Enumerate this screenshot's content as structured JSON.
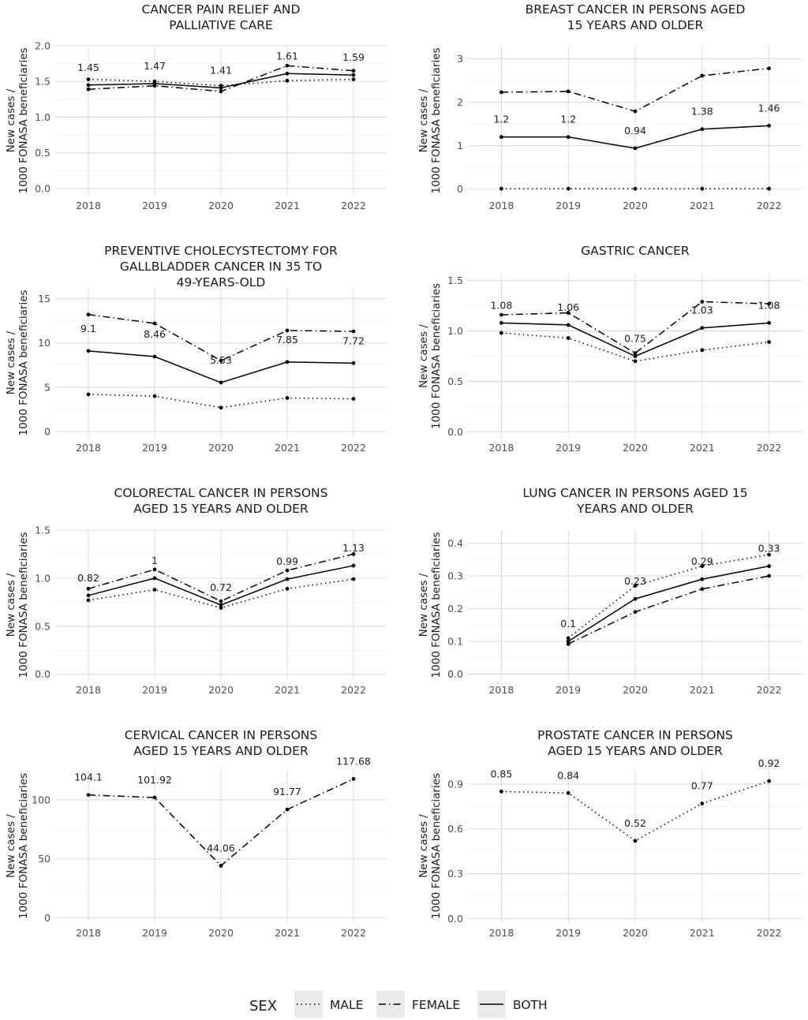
{
  "chart_data": [
    {
      "type": "line",
      "title": [
        "CANCER PAIN RELIEF AND",
        "PALLIATIVE CARE"
      ],
      "ylabel": [
        "New cases /",
        "1000 FONASA beneficiaries"
      ],
      "x": [
        2018,
        2019,
        2020,
        2021,
        2022
      ],
      "ylim": [
        -0.1,
        2.0
      ],
      "yticks": [
        "0.0",
        "0.5",
        "1.0",
        "1.5",
        "2.0"
      ],
      "ytick_values": [
        0,
        0.5,
        1.0,
        1.5,
        2.0
      ],
      "series": [
        {
          "name": "MALE",
          "values": [
            1.53,
            1.5,
            1.44,
            1.51,
            1.53
          ]
        },
        {
          "name": "FEMALE",
          "values": [
            1.39,
            1.44,
            1.36,
            1.72,
            1.65
          ]
        },
        {
          "name": "BOTH",
          "values": [
            1.45,
            1.47,
            1.41,
            1.61,
            1.59
          ]
        }
      ],
      "data_labels": [
        "1.45",
        "1.47",
        "1.41",
        "1.61",
        "1.59"
      ]
    },
    {
      "type": "line",
      "title": [
        "BREAST CANCER IN PERSONS AGED",
        "15 YEARS AND OLDER"
      ],
      "ylabel": [
        "New cases /",
        "1000 FONASA beneficiaries"
      ],
      "x": [
        2018,
        2019,
        2020,
        2021,
        2022
      ],
      "ylim": [
        -0.15,
        3.3
      ],
      "yticks": [
        "0",
        "1",
        "2",
        "3"
      ],
      "ytick_values": [
        0,
        1,
        2,
        3
      ],
      "series": [
        {
          "name": "MALE",
          "values": [
            0.01,
            0.01,
            0.01,
            0.01,
            0.01
          ]
        },
        {
          "name": "FEMALE",
          "values": [
            2.23,
            2.25,
            1.79,
            2.61,
            2.78
          ]
        },
        {
          "name": "BOTH",
          "values": [
            1.2,
            1.2,
            0.94,
            1.38,
            1.46
          ]
        }
      ],
      "data_labels": [
        "1.2",
        "1.2",
        "0.94",
        "1.38",
        "1.46"
      ]
    },
    {
      "type": "line",
      "title": [
        "PREVENTIVE CHOLECYSTECTOMY FOR",
        "GALLBLADDER CANCER IN 35 TO",
        "49-YEARS-OLD"
      ],
      "ylabel": [
        "New cases /",
        "1000 FONASA beneficiaries"
      ],
      "x": [
        2018,
        2019,
        2020,
        2021,
        2022
      ],
      "ylim": [
        -0.7,
        16.2
      ],
      "yticks": [
        "0",
        "5",
        "10",
        "15"
      ],
      "ytick_values": [
        0,
        5,
        10,
        15
      ],
      "series": [
        {
          "name": "MALE",
          "values": [
            4.2,
            4.0,
            2.7,
            3.8,
            3.7
          ]
        },
        {
          "name": "FEMALE",
          "values": [
            13.2,
            12.2,
            8.0,
            11.4,
            11.3
          ]
        },
        {
          "name": "BOTH",
          "values": [
            9.1,
            8.46,
            5.53,
            7.85,
            7.72
          ]
        }
      ],
      "data_labels": [
        "9.1",
        "8.46",
        "5.53",
        "7.85",
        "7.72"
      ]
    },
    {
      "type": "line",
      "title": [
        "GASTRIC CANCER"
      ],
      "ylabel": [
        "New cases /",
        "1000 FONASA beneficiaries"
      ],
      "x": [
        2018,
        2019,
        2020,
        2021,
        2022
      ],
      "ylim": [
        -0.06,
        1.56
      ],
      "yticks": [
        "0.0",
        "0.5",
        "1.0",
        "1.5"
      ],
      "ytick_values": [
        0,
        0.5,
        1.0,
        1.5
      ],
      "series": [
        {
          "name": "MALE",
          "values": [
            0.98,
            0.93,
            0.7,
            0.81,
            0.89
          ]
        },
        {
          "name": "FEMALE",
          "values": [
            1.16,
            1.18,
            0.78,
            1.29,
            1.27
          ]
        },
        {
          "name": "BOTH",
          "values": [
            1.08,
            1.06,
            0.75,
            1.03,
            1.08
          ]
        }
      ],
      "data_labels": [
        "1.08",
        "1.06",
        "0.75",
        "1.03",
        "1.08"
      ]
    },
    {
      "type": "line",
      "title": [
        "COLORECTAL CANCER IN PERSONS",
        "AGED 15 YEARS AND OLDER"
      ],
      "ylabel": [
        "New cases /",
        "1000 FONASA beneficiaries"
      ],
      "x": [
        2018,
        2019,
        2020,
        2021,
        2022
      ],
      "ylim": [
        -0.06,
        1.5
      ],
      "yticks": [
        "0.0",
        "0.5",
        "1.0",
        "1.5"
      ],
      "ytick_values": [
        0,
        0.5,
        1.0,
        1.5
      ],
      "series": [
        {
          "name": "MALE",
          "values": [
            0.77,
            0.88,
            0.69,
            0.89,
            0.99
          ]
        },
        {
          "name": "FEMALE",
          "values": [
            0.89,
            1.09,
            0.76,
            1.08,
            1.25
          ]
        },
        {
          "name": "BOTH",
          "values": [
            0.82,
            1.0,
            0.72,
            0.99,
            1.13
          ]
        }
      ],
      "data_labels": [
        "0.82",
        "1",
        "0.72",
        "0.99",
        "1.13"
      ]
    },
    {
      "type": "line",
      "title": [
        "LUNG CANCER IN PERSONS AGED 15",
        "YEARS AND OLDER"
      ],
      "ylabel": [
        "New cases /",
        "1000 FONASA beneficiaries"
      ],
      "x": [
        2018,
        2019,
        2020,
        2021,
        2022
      ],
      "ylim": [
        -0.018,
        0.44
      ],
      "yticks": [
        "0.0",
        "0.1",
        "0.2",
        "0.3",
        "0.4"
      ],
      "ytick_values": [
        0,
        0.1,
        0.2,
        0.3,
        0.4
      ],
      "series": [
        {
          "name": "MALE",
          "values": [
            null,
            0.11,
            0.27,
            0.33,
            0.365
          ]
        },
        {
          "name": "FEMALE",
          "values": [
            null,
            0.092,
            0.19,
            0.26,
            0.3
          ]
        },
        {
          "name": "BOTH",
          "values": [
            null,
            0.1,
            0.23,
            0.29,
            0.33
          ]
        }
      ],
      "data_labels": [
        null,
        "0.1",
        "0.23",
        "0.29",
        "0.33"
      ]
    },
    {
      "type": "line",
      "title": [
        "CERVICAL CANCER IN PERSONS",
        "AGED 15 YEARS AND OLDER"
      ],
      "ylabel": [
        "New cases /",
        "1000 FONASA beneficiaries"
      ],
      "x": [
        2018,
        2019,
        2020,
        2021,
        2022
      ],
      "ylim": [
        -4.5,
        126
      ],
      "yticks": [
        "0",
        "50",
        "100"
      ],
      "ytick_values": [
        0,
        50,
        100
      ],
      "series": [
        {
          "name": "FEMALE",
          "values": [
            104.1,
            101.92,
            44.06,
            91.77,
            117.68
          ]
        }
      ],
      "data_labels": [
        "104.1",
        "101.92",
        "44.06",
        "91.77",
        "117.68"
      ]
    },
    {
      "type": "line",
      "title": [
        "PROSTATE CANCER IN PERSONS",
        "AGED 15 YEARS AND OLDER"
      ],
      "ylabel": [
        "New cases /",
        "1000 FONASA beneficiaries"
      ],
      "x": [
        2018,
        2019,
        2020,
        2021,
        2022
      ],
      "ylim": [
        -0.03,
        1.0
      ],
      "yticks": [
        "0.0",
        "0.3",
        "0.6",
        "0.9"
      ],
      "ytick_values": [
        0,
        0.3,
        0.6,
        0.9
      ],
      "series": [
        {
          "name": "MALE",
          "values": [
            0.85,
            0.84,
            0.52,
            0.77,
            0.92
          ]
        }
      ],
      "data_labels": [
        "0.85",
        "0.84",
        "0.52",
        "0.77",
        "0.92"
      ]
    }
  ],
  "legend": {
    "title": "SEX",
    "position": "bottom",
    "items": [
      {
        "name": "MALE",
        "style": "dotted"
      },
      {
        "name": "FEMALE",
        "style": "dashdot"
      },
      {
        "name": "BOTH",
        "style": "solid"
      }
    ]
  },
  "colors": {
    "line": "#000000",
    "grid": "#d9d9d9",
    "tick_text": "#4d4d4d",
    "legend_key_bg": "#ebebeb"
  }
}
